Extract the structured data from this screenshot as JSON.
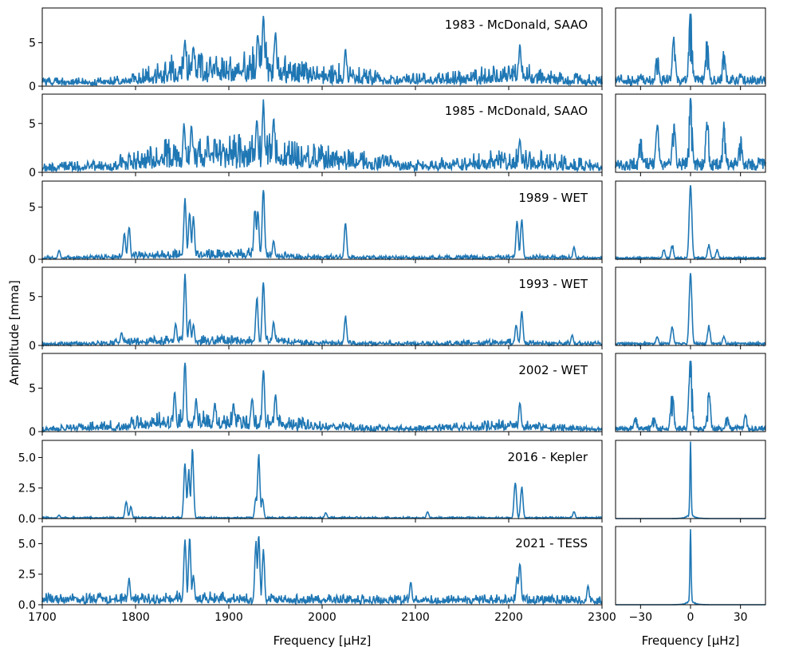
{
  "figure": {
    "ylabel": "Amplitude [mma]",
    "xlabel_main": "Frequency [$\\mu$Hz]",
    "xlabel_window": "Frequency [$\\mu$Hz]",
    "xlabel_display": "Frequency [μHz]",
    "line_color": "#1f77b4"
  },
  "chart_data": [
    {
      "type": "line",
      "title": "1983 - McDonald, SAAO",
      "xlim": [
        1700,
        2300
      ],
      "ylim": [
        0,
        9
      ],
      "yticks": [
        0,
        5
      ],
      "xticks": [
        1700,
        1800,
        1900,
        2000,
        2100,
        2200,
        2300
      ],
      "grid": false,
      "envelope": [
        [
          1700,
          1.0
        ],
        [
          1760,
          1.0
        ],
        [
          1800,
          1.8
        ],
        [
          1830,
          3.2
        ],
        [
          1850,
          4.2
        ],
        [
          1880,
          3.8
        ],
        [
          1900,
          3.5
        ],
        [
          1920,
          4.6
        ],
        [
          1940,
          5.2
        ],
        [
          1960,
          3.6
        ],
        [
          1980,
          2.8
        ],
        [
          2000,
          2.4
        ],
        [
          2025,
          2.8
        ],
        [
          2040,
          2.2
        ],
        [
          2080,
          1.5
        ],
        [
          2120,
          1.6
        ],
        [
          2160,
          2.0
        ],
        [
          2200,
          3.0
        ],
        [
          2230,
          2.4
        ],
        [
          2260,
          1.6
        ],
        [
          2300,
          1.3
        ]
      ],
      "peaks": [
        [
          1853,
          5.5
        ],
        [
          1862,
          4.8
        ],
        [
          1931,
          6.4
        ],
        [
          1937,
          8.6
        ],
        [
          1950,
          6.5
        ],
        [
          2025,
          4.5
        ],
        [
          2212,
          5.0
        ]
      ]
    },
    {
      "type": "line",
      "title": "1985 - McDonald, SAAO",
      "xlim": [
        1700,
        2300
      ],
      "ylim": [
        0,
        8
      ],
      "yticks": [
        0,
        5
      ],
      "xticks": [
        1700,
        1800,
        1900,
        2000,
        2100,
        2200,
        2300
      ],
      "grid": false,
      "envelope": [
        [
          1700,
          1.0
        ],
        [
          1760,
          1.4
        ],
        [
          1800,
          2.2
        ],
        [
          1830,
          3.4
        ],
        [
          1860,
          4.0
        ],
        [
          1890,
          3.8
        ],
        [
          1920,
          4.2
        ],
        [
          1940,
          4.4
        ],
        [
          1960,
          3.6
        ],
        [
          1990,
          3.0
        ],
        [
          2020,
          2.6
        ],
        [
          2060,
          2.0
        ],
        [
          2100,
          1.4
        ],
        [
          2150,
          1.8
        ],
        [
          2200,
          2.6
        ],
        [
          2240,
          2.2
        ],
        [
          2270,
          1.6
        ],
        [
          2300,
          1.2
        ]
      ],
      "peaks": [
        [
          1852,
          5.3
        ],
        [
          1860,
          5.0
        ],
        [
          1930,
          5.8
        ],
        [
          1937,
          7.6
        ],
        [
          1948,
          6.0
        ],
        [
          2212,
          3.5
        ]
      ]
    },
    {
      "type": "line",
      "title": "1989 - WET",
      "xlim": [
        1700,
        2300
      ],
      "ylim": [
        0,
        7.5
      ],
      "yticks": [
        0,
        5
      ],
      "xticks": [
        1700,
        1800,
        1900,
        2000,
        2100,
        2200,
        2300
      ],
      "grid": false,
      "envelope": [
        [
          1700,
          0.3
        ],
        [
          1760,
          0.4
        ],
        [
          1800,
          0.7
        ],
        [
          1850,
          1.0
        ],
        [
          1900,
          1.0
        ],
        [
          1940,
          1.2
        ],
        [
          1980,
          0.5
        ],
        [
          2100,
          0.3
        ],
        [
          2200,
          0.5
        ],
        [
          2300,
          0.3
        ]
      ],
      "peaks": [
        [
          1718,
          0.9
        ],
        [
          1788,
          2.5
        ],
        [
          1793,
          3.3
        ],
        [
          1853,
          6.1
        ],
        [
          1858,
          4.8
        ],
        [
          1862,
          4.2
        ],
        [
          1928,
          5.1
        ],
        [
          1931,
          4.8
        ],
        [
          1937,
          7.1
        ],
        [
          1948,
          1.8
        ],
        [
          2025,
          3.6
        ],
        [
          2209,
          3.8
        ],
        [
          2214,
          4.0
        ],
        [
          2270,
          1.2
        ]
      ]
    },
    {
      "type": "line",
      "title": "1993 - WET",
      "xlim": [
        1700,
        2300
      ],
      "ylim": [
        0,
        8
      ],
      "yticks": [
        0,
        5
      ],
      "xticks": [
        1700,
        1800,
        1900,
        2000,
        2100,
        2200,
        2300
      ],
      "grid": false,
      "envelope": [
        [
          1700,
          0.3
        ],
        [
          1760,
          0.5
        ],
        [
          1800,
          0.8
        ],
        [
          1850,
          1.2
        ],
        [
          1900,
          1.0
        ],
        [
          1940,
          1.2
        ],
        [
          1980,
          0.6
        ],
        [
          2100,
          0.4
        ],
        [
          2200,
          0.7
        ],
        [
          2300,
          0.4
        ]
      ],
      "peaks": [
        [
          1785,
          1.4
        ],
        [
          1843,
          2.3
        ],
        [
          1853,
          7.4
        ],
        [
          1858,
          2.8
        ],
        [
          1862,
          2.2
        ],
        [
          1930,
          5.1
        ],
        [
          1937,
          7.1
        ],
        [
          1948,
          2.5
        ],
        [
          2025,
          3.1
        ],
        [
          2208,
          2.2
        ],
        [
          2214,
          3.7
        ],
        [
          2268,
          1.1
        ]
      ]
    },
    {
      "type": "line",
      "title": "2002 - WET",
      "xlim": [
        1700,
        2300
      ],
      "ylim": [
        0,
        9
      ],
      "yticks": [
        0,
        5
      ],
      "xticks": [
        1700,
        1800,
        1900,
        2000,
        2100,
        2200,
        2300
      ],
      "grid": false,
      "envelope": [
        [
          1700,
          0.6
        ],
        [
          1760,
          1.2
        ],
        [
          1800,
          1.8
        ],
        [
          1840,
          2.6
        ],
        [
          1880,
          2.4
        ],
        [
          1920,
          2.4
        ],
        [
          1950,
          2.0
        ],
        [
          2000,
          1.4
        ],
        [
          2050,
          0.8
        ],
        [
          2100,
          0.7
        ],
        [
          2200,
          1.5
        ],
        [
          2240,
          1.0
        ],
        [
          2300,
          0.6
        ]
      ],
      "peaks": [
        [
          1842,
          4.9
        ],
        [
          1853,
          8.4
        ],
        [
          1865,
          3.9
        ],
        [
          1885,
          3.5
        ],
        [
          1905,
          3.4
        ],
        [
          1925,
          4.1
        ],
        [
          1937,
          7.5
        ],
        [
          1950,
          4.5
        ],
        [
          2212,
          3.5
        ]
      ]
    },
    {
      "type": "line",
      "title": "2016 - Kepler",
      "xlim": [
        1700,
        2300
      ],
      "ylim": [
        0,
        6.4
      ],
      "yticks": [
        0.0,
        2.5,
        5.0
      ],
      "xticks": [
        1700,
        1800,
        1900,
        2000,
        2100,
        2200,
        2300
      ],
      "grid": false,
      "envelope": [
        [
          1700,
          0.15
        ],
        [
          2300,
          0.15
        ]
      ],
      "peaks": [
        [
          1718,
          0.3
        ],
        [
          1790,
          1.5
        ],
        [
          1795,
          1.0
        ],
        [
          1853,
          4.7
        ],
        [
          1857,
          4.1
        ],
        [
          1861,
          5.9
        ],
        [
          1929,
          1.8
        ],
        [
          1932,
          5.4
        ],
        [
          1936,
          1.7
        ],
        [
          2004,
          0.5
        ],
        [
          2113,
          0.6
        ],
        [
          2207,
          3.1
        ],
        [
          2214,
          2.7
        ],
        [
          2270,
          0.6
        ]
      ]
    },
    {
      "type": "line",
      "title": "2021 - TESS",
      "xlim": [
        1700,
        2300
      ],
      "ylim": [
        0,
        6.4
      ],
      "yticks": [
        0.0,
        2.5,
        5.0
      ],
      "xticks": [
        1700,
        1800,
        1900,
        2000,
        2100,
        2200,
        2300
      ],
      "grid": false,
      "envelope": [
        [
          1700,
          1.0
        ],
        [
          1800,
          1.0
        ],
        [
          1850,
          1.2
        ],
        [
          1900,
          1.0
        ],
        [
          1950,
          0.9
        ],
        [
          2100,
          0.8
        ],
        [
          2200,
          0.9
        ],
        [
          2300,
          0.7
        ]
      ],
      "peaks": [
        [
          1793,
          2.2
        ],
        [
          1853,
          5.7
        ],
        [
          1858,
          5.6
        ],
        [
          1862,
          2.5
        ],
        [
          1929,
          5.3
        ],
        [
          1932,
          5.7
        ],
        [
          1937,
          4.6
        ],
        [
          2095,
          1.9
        ],
        [
          2209,
          2.4
        ],
        [
          2212,
          3.7
        ],
        [
          2285,
          1.6
        ]
      ]
    }
  ],
  "window_data": [
    {
      "type": "line",
      "xlim": [
        -45,
        45
      ],
      "xticks": [
        -30,
        0,
        30
      ],
      "shape": "multiplet",
      "center": 8.6,
      "side": [
        [
          -10,
          5.8
        ],
        [
          10,
          5.9
        ],
        [
          -20,
          4.2
        ],
        [
          20,
          4.2
        ],
        [
          -30,
          1.6
        ],
        [
          30,
          1.6
        ]
      ],
      "floor": 1.3
    },
    {
      "type": "line",
      "xlim": [
        -45,
        45
      ],
      "xticks": [
        -30,
        0,
        30
      ],
      "shape": "multiplet",
      "center": 7.6,
      "side": [
        [
          -10,
          6.0
        ],
        [
          10,
          6.0
        ],
        [
          -20,
          5.5
        ],
        [
          20,
          5.5
        ],
        [
          -30,
          4.0
        ],
        [
          30,
          4.2
        ]
      ],
      "floor": 1.5
    },
    {
      "type": "line",
      "xlim": [
        -45,
        45
      ],
      "xticks": [
        -30,
        0,
        30
      ],
      "shape": "narrow",
      "center": 7.1,
      "side": [
        [
          -11,
          1.5
        ],
        [
          11,
          1.5
        ],
        [
          -16,
          1.0
        ],
        [
          16,
          1.0
        ]
      ],
      "floor": 0.2
    },
    {
      "type": "line",
      "xlim": [
        -45,
        45
      ],
      "xticks": [
        -30,
        0,
        30
      ],
      "shape": "narrow",
      "center": 7.4,
      "side": [
        [
          -11,
          2.2
        ],
        [
          11,
          2.2
        ],
        [
          -20,
          1.0
        ],
        [
          20,
          1.0
        ]
      ],
      "floor": 0.3
    },
    {
      "type": "line",
      "xlim": [
        -45,
        45
      ],
      "xticks": [
        -30,
        0,
        30
      ],
      "shape": "multiplet",
      "center": 8.4,
      "side": [
        [
          -11,
          4.9
        ],
        [
          11,
          4.9
        ],
        [
          -22,
          2.0
        ],
        [
          22,
          2.0
        ],
        [
          -33,
          2.0
        ],
        [
          33,
          2.0
        ]
      ],
      "floor": 0.7
    },
    {
      "type": "line",
      "xlim": [
        -45,
        45
      ],
      "xticks": [
        -30,
        0,
        30
      ],
      "shape": "spike",
      "center": 5.9,
      "side": [],
      "floor": 0.0
    },
    {
      "type": "line",
      "xlim": [
        -45,
        45
      ],
      "xticks": [
        -30,
        0,
        30
      ],
      "shape": "spike",
      "center": 5.7,
      "side": [],
      "floor": 0.0
    }
  ]
}
